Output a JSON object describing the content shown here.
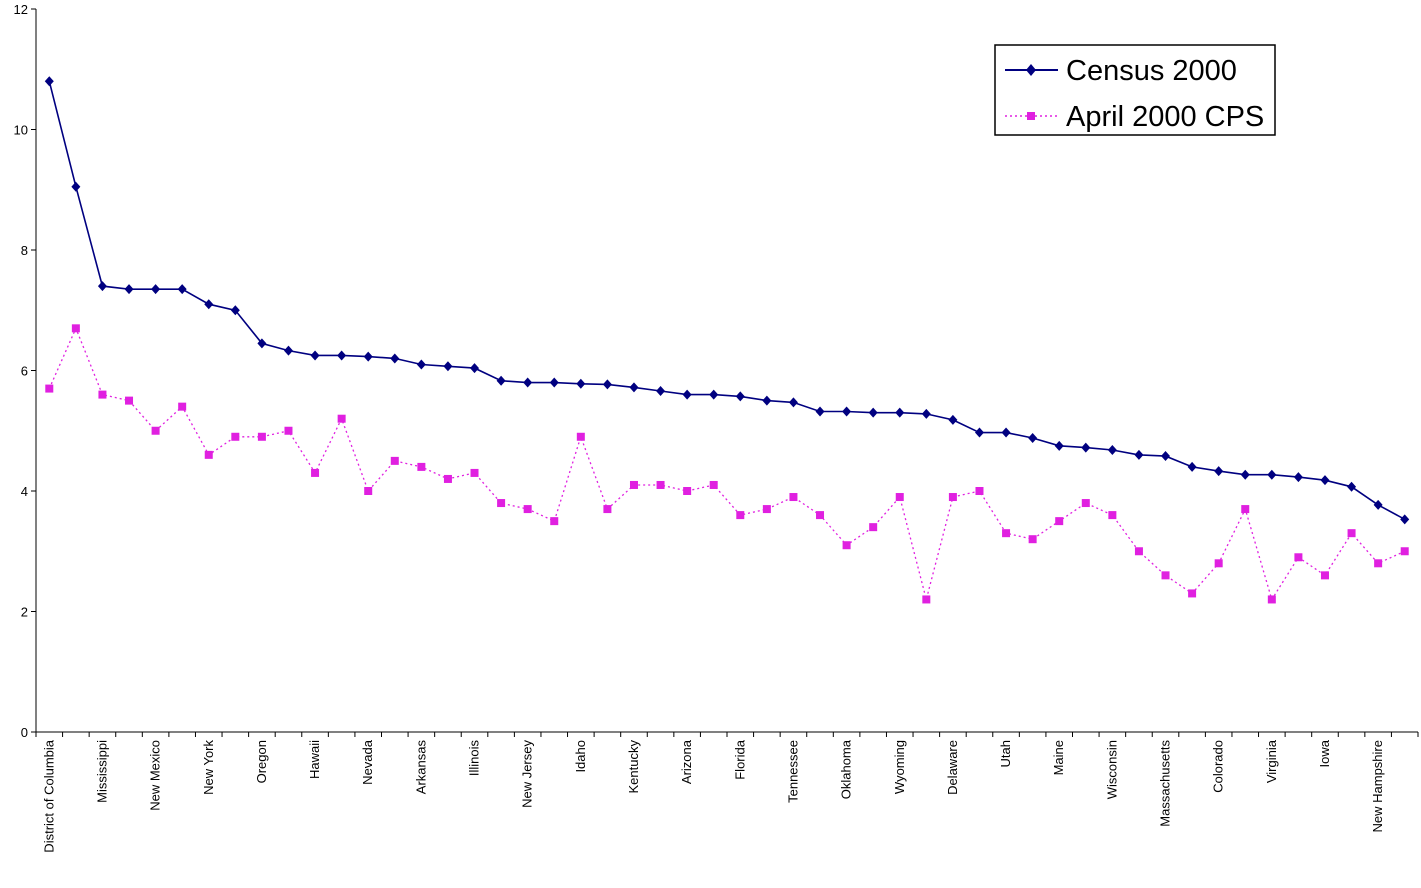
{
  "chart_data": {
    "type": "line",
    "title": "",
    "xlabel": "",
    "ylabel": "",
    "ylim": [
      0,
      12
    ],
    "yticks": [
      0,
      2,
      4,
      6,
      8,
      10,
      12
    ],
    "grid": false,
    "legend_position": "top-right",
    "categories": [
      "District of Columbia",
      "",
      "Mississippi",
      "",
      "New Mexico",
      "",
      "New York",
      "",
      "Oregon",
      "",
      "Hawaii",
      "",
      "Nevada",
      "",
      "Arkansas",
      "",
      "Illinois",
      "",
      "New Jersey",
      "",
      "Idaho",
      "",
      "Kentucky",
      "",
      "Arizona",
      "",
      "Florida",
      "",
      "Tennessee",
      "",
      "Oklahoma",
      "",
      "Wyoming",
      "",
      "Delaware",
      "",
      "Utah",
      "",
      "Maine",
      "",
      "Wisconsin",
      "",
      "Massachusetts",
      "",
      "Colorado",
      "",
      "Virginia",
      "",
      "Iowa",
      "",
      "New Hampshire",
      ""
    ],
    "series": [
      {
        "name": "Census 2000",
        "color": "#000080",
        "marker": "diamond",
        "line_style": "solid",
        "values": [
          10.8,
          9.05,
          7.4,
          7.35,
          7.35,
          7.35,
          7.1,
          7.0,
          6.45,
          6.33,
          6.25,
          6.25,
          6.23,
          6.2,
          6.1,
          6.07,
          6.04,
          5.83,
          5.8,
          5.8,
          5.78,
          5.77,
          5.72,
          5.66,
          5.6,
          5.6,
          5.57,
          5.5,
          5.47,
          5.32,
          5.32,
          5.3,
          5.3,
          5.28,
          5.18,
          4.97,
          4.97,
          4.88,
          4.75,
          4.72,
          4.68,
          4.6,
          4.58,
          4.4,
          4.33,
          4.27,
          4.27,
          4.23,
          4.18,
          4.07,
          3.77,
          3.53
        ]
      },
      {
        "name": "April 2000 CPS",
        "color": "#E020E0",
        "marker": "square",
        "line_style": "dotted",
        "values": [
          5.7,
          6.7,
          5.6,
          5.5,
          5.0,
          5.4,
          4.6,
          4.9,
          4.9,
          5.0,
          4.3,
          5.2,
          4.0,
          4.5,
          4.4,
          4.2,
          4.3,
          3.8,
          3.7,
          3.5,
          4.9,
          3.7,
          4.1,
          4.1,
          4.0,
          4.1,
          3.6,
          3.7,
          3.9,
          3.6,
          3.1,
          3.4,
          3.9,
          2.2,
          3.9,
          4.0,
          3.3,
          3.2,
          3.5,
          3.8,
          3.6,
          3.0,
          2.6,
          2.3,
          2.8,
          3.7,
          2.2,
          2.9,
          2.6,
          3.3,
          2.8,
          3.0
        ]
      }
    ]
  }
}
